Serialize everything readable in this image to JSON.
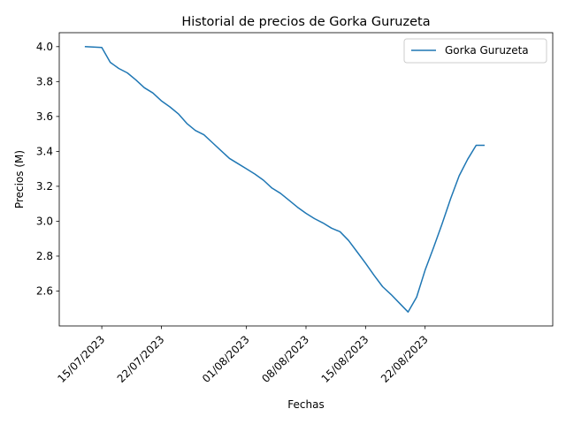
{
  "chart_data": {
    "type": "line",
    "title": "Historial de precios de Gorka Guruzeta",
    "xlabel": "Fechas",
    "ylabel": "Precios (M)",
    "xlim": [
      "2023-07-10",
      "2023-09-06"
    ],
    "ylim": [
      2.4,
      4.08
    ],
    "x_ticks": [
      "2023-07-15",
      "2023-07-22",
      "2023-08-01",
      "2023-08-08",
      "2023-08-15",
      "2023-08-22"
    ],
    "x_tick_labels": [
      "15/07/2023",
      "22/07/2023",
      "01/08/2023",
      "08/08/2023",
      "15/08/2023",
      "22/08/2023"
    ],
    "y_ticks": [
      2.6,
      2.8,
      3.0,
      3.2,
      3.4,
      3.6,
      3.8,
      4.0
    ],
    "y_tick_labels": [
      "2.6",
      "2.8",
      "3.0",
      "3.2",
      "3.4",
      "3.6",
      "3.8",
      "4.0"
    ],
    "legend": {
      "position": "upper right"
    },
    "grid": false,
    "series": [
      {
        "name": "Gorka Guruzeta",
        "color": "#1f77b4",
        "x": [
          "2023-07-13",
          "2023-07-15",
          "2023-07-16",
          "2023-07-17",
          "2023-07-18",
          "2023-07-19",
          "2023-07-20",
          "2023-07-21",
          "2023-07-22",
          "2023-07-23",
          "2023-07-24",
          "2023-07-25",
          "2023-07-26",
          "2023-07-27",
          "2023-07-28",
          "2023-07-29",
          "2023-07-30",
          "2023-07-31",
          "2023-08-01",
          "2023-08-02",
          "2023-08-03",
          "2023-08-04",
          "2023-08-05",
          "2023-08-06",
          "2023-08-07",
          "2023-08-08",
          "2023-08-09",
          "2023-08-10",
          "2023-08-11",
          "2023-08-12",
          "2023-08-13",
          "2023-08-14",
          "2023-08-15",
          "2023-08-16",
          "2023-08-17",
          "2023-08-18",
          "2023-08-19",
          "2023-08-20",
          "2023-08-21",
          "2023-08-22",
          "2023-08-23",
          "2023-08-24",
          "2023-08-25",
          "2023-08-26",
          "2023-08-27",
          "2023-08-28",
          "2023-08-29"
        ],
        "values": [
          4.0,
          3.995,
          3.91,
          3.875,
          3.85,
          3.81,
          3.765,
          3.735,
          3.69,
          3.655,
          3.615,
          3.56,
          3.52,
          3.495,
          3.45,
          3.405,
          3.36,
          3.33,
          3.3,
          3.27,
          3.235,
          3.19,
          3.16,
          3.12,
          3.08,
          3.045,
          3.015,
          2.99,
          2.96,
          2.94,
          2.89,
          2.825,
          2.76,
          2.69,
          2.625,
          2.58,
          2.53,
          2.48,
          2.565,
          2.72,
          2.85,
          2.985,
          3.13,
          3.26,
          3.355,
          3.435,
          3.435
        ]
      }
    ]
  }
}
